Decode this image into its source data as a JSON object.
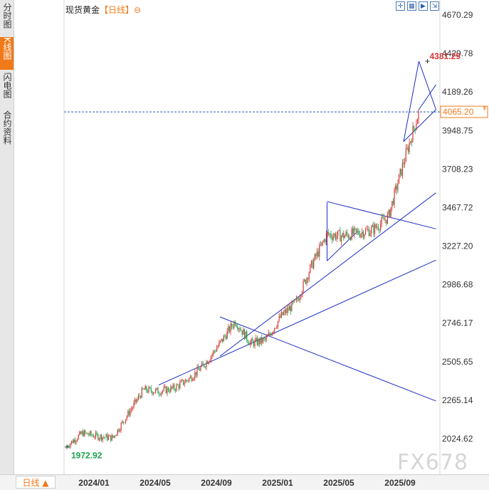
{
  "header": {
    "instrument": "现货黄金",
    "period": "【日线】",
    "settings_icon": "gear-icon"
  },
  "toolbar": {
    "icons": [
      "crosshair-icon",
      "grid-icon",
      "play-icon",
      "compare-icon"
    ]
  },
  "sidebar": {
    "tabs": [
      {
        "label": "分时图",
        "active": false
      },
      {
        "label": "K线图",
        "active": true
      },
      {
        "label": "闪电图",
        "active": false
      },
      {
        "label": "合约资料",
        "active": false
      }
    ]
  },
  "footer": {
    "period_button": "日线 ▲"
  },
  "watermark": "FX678",
  "colors": {
    "up": "#d93636",
    "down": "#19a34a",
    "trendline": "#1c2ec4",
    "current_line": "#2a5ca8",
    "current_label": "#f07a1a",
    "accent": "#f07a1a"
  },
  "chart_data": {
    "type": "candlestick",
    "title": "",
    "ylim": [
      1900,
      4750
    ],
    "y_ticks": [
      "4670.29",
      "4429.78",
      "4189.26",
      "3948.75",
      "3708.23",
      "3467.72",
      "3227.20",
      "2986.68",
      "2746.17",
      "2505.65",
      "2265.14",
      "2024.62"
    ],
    "x_ticks": [
      "2024/01",
      "2024/05",
      "2024/09",
      "2025/01",
      "2025/05",
      "2025/09"
    ],
    "x_range": [
      "2023/11",
      "2025/10"
    ],
    "current_price": "4065.20",
    "annotations": {
      "high": {
        "label": "4381.29",
        "x": "2025/10",
        "y": 4381.29
      },
      "low": {
        "label": "1972.92",
        "x": "2023/11",
        "y": 1972.92
      }
    },
    "trendlines": [
      {
        "from": [
          "2024/05",
          2360
        ],
        "to": [
          "2025/10",
          3140
        ]
      },
      {
        "from": [
          "2024/09",
          2540
        ],
        "to": [
          "2025/10",
          3560
        ]
      },
      {
        "from": [
          "2024/09",
          2785
        ],
        "to": [
          "2025/10",
          2260
        ]
      },
      {
        "from": [
          "2025/04",
          3505
        ],
        "to": [
          "2025/10",
          3335
        ]
      },
      {
        "from": [
          "2025/04",
          3500
        ],
        "to": [
          "2025/04",
          3135
        ]
      },
      {
        "from": [
          "2025/04",
          3135
        ],
        "to": [
          "2025/06",
          3320
        ]
      },
      {
        "from": [
          "2025/10",
          4381.29
        ],
        "to": [
          "2025/10",
          4080
        ]
      },
      {
        "from": [
          "2025/09",
          3880
        ],
        "to": [
          "2025/10",
          4080
        ]
      },
      {
        "from": [
          "2025/10",
          4381.29
        ],
        "to": [
          "2025/09",
          3880
        ]
      },
      {
        "from": [
          "2025/10",
          4080
        ],
        "to": [
          "2025/10",
          4235
        ]
      }
    ],
    "series": [
      {
        "x": [
          "2023/11",
          "2023/12",
          "2024/01",
          "2024/02",
          "2024/03",
          "2024/04",
          "2024/05",
          "2024/06",
          "2024/07",
          "2024/08",
          "2024/09",
          "2024/10",
          "2024/11",
          "2024/12",
          "2025/01",
          "2025/02",
          "2025/03",
          "2025/04",
          "2025/05",
          "2025/06",
          "2025/07",
          "2025/08",
          "2025/09",
          "2025/10"
        ],
        "values": [
          1980,
          2060,
          2040,
          2030,
          2180,
          2330,
          2320,
          2340,
          2400,
          2490,
          2620,
          2760,
          2620,
          2640,
          2790,
          2880,
          3110,
          3300,
          3290,
          3310,
          3330,
          3410,
          3750,
          4065.2
        ]
      }
    ]
  }
}
